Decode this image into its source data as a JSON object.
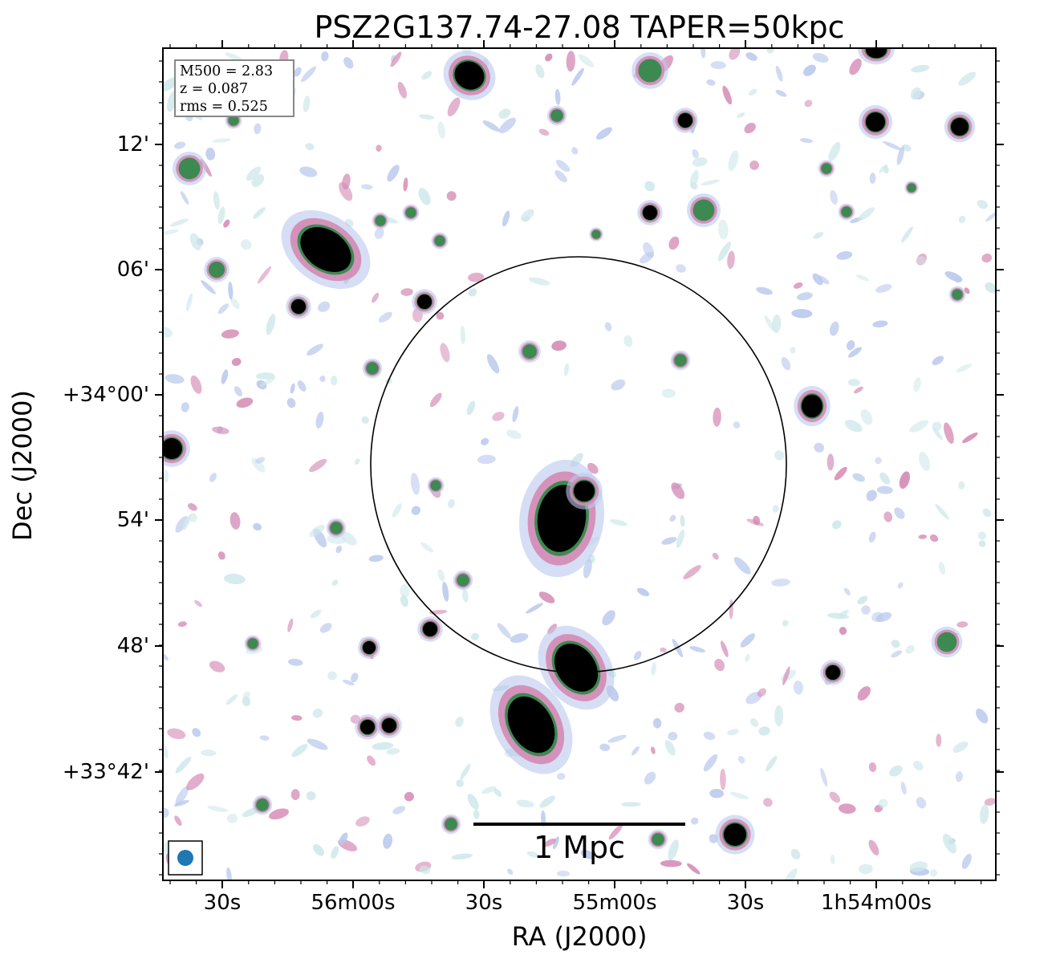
{
  "title": "PSZ2G137.74-27.08 TAPER=50kpc",
  "xlabel": "RA (J2000)",
  "ylabel": "Dec (J2000)",
  "yticks": [
    "12'",
    "06'",
    "+34°00'",
    "54'",
    "48'",
    "+33°42'"
  ],
  "xticks": [
    "30s",
    "56m00s",
    "30s",
    "55m00s",
    "30s",
    "1h54m00s"
  ],
  "info": {
    "mass": "M500 = 2.83",
    "redshift": "z = 0.087",
    "rms": "rms = 0.525"
  },
  "scalebar": {
    "label": "1 Mpc"
  },
  "colors": {
    "bright_source": "#000000",
    "halo_pink": "#d48ab4",
    "halo_green": "#3c8a52",
    "noise_blue": "#b9c8ec",
    "noise_cyan": "#cfe8ea",
    "beam": "#1f77b4"
  }
}
